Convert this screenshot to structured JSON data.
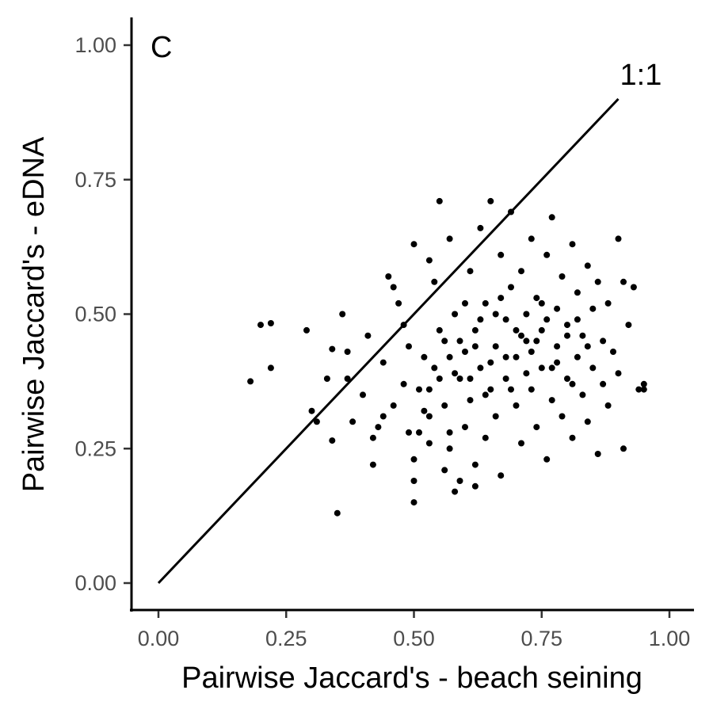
{
  "chart_data": {
    "type": "scatter",
    "panel_label": "C",
    "xlabel": "Pairwise Jaccard's - beach seining",
    "ylabel": "Pairwise Jaccard's - eDNA",
    "xlim": [
      -0.05,
      1.05
    ],
    "ylim": [
      -0.1,
      1.05
    ],
    "x_ticks": [
      {
        "value": 0.0,
        "label": "0.00"
      },
      {
        "value": 0.25,
        "label": "0.25"
      },
      {
        "value": 0.5,
        "label": "0.50"
      },
      {
        "value": 0.75,
        "label": "0.75"
      },
      {
        "value": 1.0,
        "label": "1.00"
      }
    ],
    "y_ticks": [
      {
        "value": 0.0,
        "label": "0.00"
      },
      {
        "value": 0.25,
        "label": "0.25"
      },
      {
        "value": 0.5,
        "label": "0.50"
      },
      {
        "value": 0.75,
        "label": "0.75"
      },
      {
        "value": 1.0,
        "label": "1.00"
      }
    ],
    "reference_line": {
      "label": "1:1",
      "from": [
        0,
        0
      ],
      "to": [
        0.9,
        0.9
      ]
    },
    "grid": false,
    "point_color": "#000000",
    "points": [
      [
        0.18,
        0.375
      ],
      [
        0.2,
        0.48
      ],
      [
        0.22,
        0.483
      ],
      [
        0.22,
        0.4
      ],
      [
        0.29,
        0.47
      ],
      [
        0.3,
        0.32
      ],
      [
        0.31,
        0.3
      ],
      [
        0.33,
        0.38
      ],
      [
        0.34,
        0.435
      ],
      [
        0.34,
        0.265
      ],
      [
        0.35,
        0.13
      ],
      [
        0.36,
        0.5
      ],
      [
        0.37,
        0.43
      ],
      [
        0.37,
        0.38
      ],
      [
        0.38,
        0.3
      ],
      [
        0.4,
        0.35
      ],
      [
        0.41,
        0.46
      ],
      [
        0.42,
        0.22
      ],
      [
        0.42,
        0.27
      ],
      [
        0.43,
        0.29
      ],
      [
        0.44,
        0.41
      ],
      [
        0.45,
        0.57
      ],
      [
        0.46,
        0.55
      ],
      [
        0.47,
        0.52
      ],
      [
        0.48,
        0.48
      ],
      [
        0.49,
        0.44
      ],
      [
        0.5,
        0.63
      ],
      [
        0.5,
        0.15
      ],
      [
        0.5,
        0.19
      ],
      [
        0.5,
        0.23
      ],
      [
        0.51,
        0.28
      ],
      [
        0.52,
        0.32
      ],
      [
        0.53,
        0.6
      ],
      [
        0.53,
        0.36
      ],
      [
        0.54,
        0.4
      ],
      [
        0.54,
        0.56
      ],
      [
        0.55,
        0.71
      ],
      [
        0.56,
        0.33
      ],
      [
        0.56,
        0.45
      ],
      [
        0.57,
        0.64
      ],
      [
        0.57,
        0.25
      ],
      [
        0.58,
        0.17
      ],
      [
        0.58,
        0.5
      ],
      [
        0.59,
        0.38
      ],
      [
        0.6,
        0.43
      ],
      [
        0.6,
        0.29
      ],
      [
        0.61,
        0.58
      ],
      [
        0.61,
        0.34
      ],
      [
        0.62,
        0.47
      ],
      [
        0.62,
        0.22
      ],
      [
        0.63,
        0.66
      ],
      [
        0.63,
        0.4
      ],
      [
        0.64,
        0.52
      ],
      [
        0.64,
        0.27
      ],
      [
        0.65,
        0.71
      ],
      [
        0.65,
        0.36
      ],
      [
        0.66,
        0.44
      ],
      [
        0.66,
        0.31
      ],
      [
        0.67,
        0.61
      ],
      [
        0.67,
        0.2
      ],
      [
        0.68,
        0.49
      ],
      [
        0.68,
        0.38
      ],
      [
        0.69,
        0.69
      ],
      [
        0.69,
        0.55
      ],
      [
        0.7,
        0.42
      ],
      [
        0.7,
        0.33
      ],
      [
        0.71,
        0.58
      ],
      [
        0.71,
        0.26
      ],
      [
        0.72,
        0.5
      ],
      [
        0.72,
        0.45
      ],
      [
        0.73,
        0.64
      ],
      [
        0.73,
        0.36
      ],
      [
        0.74,
        0.53
      ],
      [
        0.74,
        0.29
      ],
      [
        0.75,
        0.47
      ],
      [
        0.75,
        0.4
      ],
      [
        0.76,
        0.61
      ],
      [
        0.76,
        0.23
      ],
      [
        0.77,
        0.68
      ],
      [
        0.77,
        0.34
      ],
      [
        0.78,
        0.51
      ],
      [
        0.78,
        0.44
      ],
      [
        0.79,
        0.57
      ],
      [
        0.79,
        0.31
      ],
      [
        0.8,
        0.48
      ],
      [
        0.8,
        0.38
      ],
      [
        0.81,
        0.63
      ],
      [
        0.81,
        0.27
      ],
      [
        0.82,
        0.54
      ],
      [
        0.82,
        0.42
      ],
      [
        0.83,
        0.46
      ],
      [
        0.83,
        0.35
      ],
      [
        0.84,
        0.59
      ],
      [
        0.84,
        0.3
      ],
      [
        0.85,
        0.51
      ],
      [
        0.85,
        0.4
      ],
      [
        0.86,
        0.56
      ],
      [
        0.86,
        0.24
      ],
      [
        0.87,
        0.45
      ],
      [
        0.87,
        0.37
      ],
      [
        0.88,
        0.52
      ],
      [
        0.88,
        0.33
      ],
      [
        0.89,
        0.43
      ],
      [
        0.9,
        0.64
      ],
      [
        0.9,
        0.39
      ],
      [
        0.91,
        0.56
      ],
      [
        0.91,
        0.25
      ],
      [
        0.92,
        0.48
      ],
      [
        0.93,
        0.55
      ],
      [
        0.94,
        0.36
      ],
      [
        0.95,
        0.37
      ],
      [
        0.95,
        0.36
      ],
      [
        0.52,
        0.42
      ],
      [
        0.55,
        0.47
      ],
      [
        0.58,
        0.39
      ],
      [
        0.6,
        0.52
      ],
      [
        0.62,
        0.44
      ],
      [
        0.64,
        0.35
      ],
      [
        0.66,
        0.5
      ],
      [
        0.68,
        0.42
      ],
      [
        0.7,
        0.47
      ],
      [
        0.72,
        0.39
      ],
      [
        0.74,
        0.45
      ],
      [
        0.76,
        0.49
      ],
      [
        0.78,
        0.41
      ],
      [
        0.8,
        0.46
      ],
      [
        0.82,
        0.49
      ],
      [
        0.84,
        0.44
      ],
      [
        0.53,
        0.31
      ],
      [
        0.57,
        0.28
      ],
      [
        0.61,
        0.38
      ],
      [
        0.65,
        0.41
      ],
      [
        0.69,
        0.36
      ],
      [
        0.73,
        0.43
      ],
      [
        0.77,
        0.4
      ],
      [
        0.81,
        0.37
      ],
      [
        0.48,
        0.37
      ],
      [
        0.46,
        0.33
      ],
      [
        0.44,
        0.31
      ],
      [
        0.49,
        0.28
      ],
      [
        0.51,
        0.36
      ],
      [
        0.53,
        0.26
      ],
      [
        0.56,
        0.21
      ],
      [
        0.59,
        0.19
      ],
      [
        0.62,
        0.18
      ],
      [
        0.55,
        0.38
      ],
      [
        0.57,
        0.42
      ],
      [
        0.59,
        0.45
      ],
      [
        0.63,
        0.49
      ],
      [
        0.67,
        0.53
      ],
      [
        0.71,
        0.46
      ],
      [
        0.75,
        0.52
      ]
    ]
  }
}
